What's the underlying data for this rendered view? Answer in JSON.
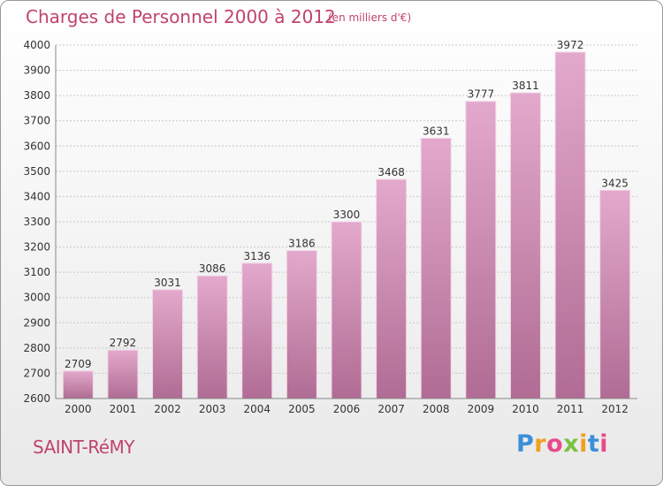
{
  "chart_data": {
    "type": "bar",
    "title": "Charges de Personnel 2000 à 2012",
    "subtitle": "(en milliers d'€)",
    "categories": [
      "2000",
      "2001",
      "2002",
      "2003",
      "2004",
      "2005",
      "2006",
      "2007",
      "2008",
      "2009",
      "2010",
      "2011",
      "2012"
    ],
    "values": [
      2709,
      2792,
      3031,
      3086,
      3136,
      3186,
      3300,
      3468,
      3631,
      3777,
      3811,
      3972,
      3425
    ],
    "ylim": [
      2600,
      4000
    ],
    "yticks": [
      2600,
      2700,
      2800,
      2900,
      3000,
      3100,
      3200,
      3300,
      3400,
      3500,
      3600,
      3700,
      3800,
      3900,
      4000
    ],
    "grid": true,
    "bar_color": "#c97aa6"
  },
  "place": "SAINT-RéMY",
  "logo": {
    "letters": [
      "P",
      "r",
      "o",
      "x",
      "i",
      "t",
      "i"
    ],
    "colors": [
      "#3a8fd8",
      "#f0a020",
      "#e84a8a",
      "#7ac142",
      "#f0a020",
      "#3a8fd8",
      "#e84a8a"
    ]
  }
}
